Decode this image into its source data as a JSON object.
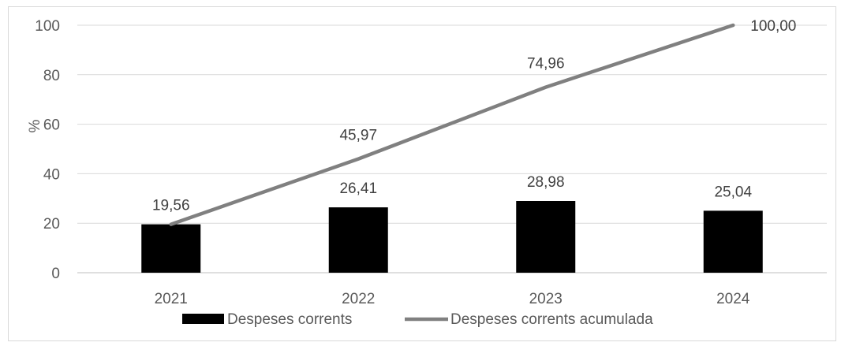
{
  "chart_data": {
    "type": "bar",
    "title": "",
    "xlabel": "",
    "ylabel": "%",
    "ylim": [
      0,
      100
    ],
    "yticks": [
      "0",
      "20",
      "40",
      "60",
      "80",
      "100"
    ],
    "categories": [
      "2021",
      "2022",
      "2023",
      "2024"
    ],
    "grid": true,
    "legend_position": "bottom",
    "series": [
      {
        "name": "Despeses corrents",
        "type": "bar",
        "color": "#000000",
        "values": [
          19.56,
          26.41,
          28.98,
          25.04
        ],
        "labels": [
          "19,56",
          "26,41",
          "28,98",
          "25,04"
        ]
      },
      {
        "name": "Despeses corrents acumulada",
        "type": "line",
        "color": "#808080",
        "values": [
          19.56,
          45.97,
          74.96,
          100.0
        ],
        "labels": [
          "",
          "45,97",
          "74,96",
          "100,00"
        ]
      }
    ]
  }
}
